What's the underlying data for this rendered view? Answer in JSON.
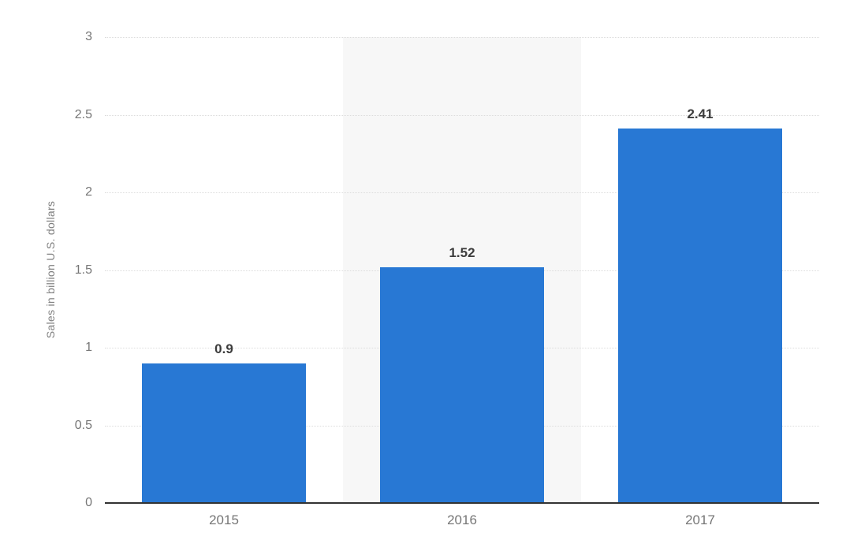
{
  "chart": {
    "background_color": "#ffffff",
    "bar_color": "#2878d4",
    "highlight_band_color": "#f7f7f7",
    "grid_color": "#dcdcdc",
    "axis_line_color": "#333333",
    "tick_label_color": "#767676",
    "value_label_color": "#3d3d3d",
    "axis_title_color": "#808080"
  },
  "chart_data": {
    "type": "bar",
    "categories": [
      "2015",
      "2016",
      "2017"
    ],
    "values": [
      0.9,
      1.52,
      2.41
    ],
    "value_labels": [
      "0.9",
      "1.52",
      "2.41"
    ],
    "title": "",
    "xlabel": "",
    "ylabel": "Sales in billion U.S. dollars",
    "ylim": [
      0,
      3
    ],
    "yticks": [
      0,
      0.5,
      1,
      1.5,
      2,
      2.5,
      3
    ],
    "ytick_labels": [
      "0",
      "0.5",
      "1",
      "1.5",
      "2",
      "2.5",
      "3"
    ],
    "grid": true,
    "legend": false,
    "highlighted_category_index": 1,
    "bar_width_fraction": 0.69
  }
}
